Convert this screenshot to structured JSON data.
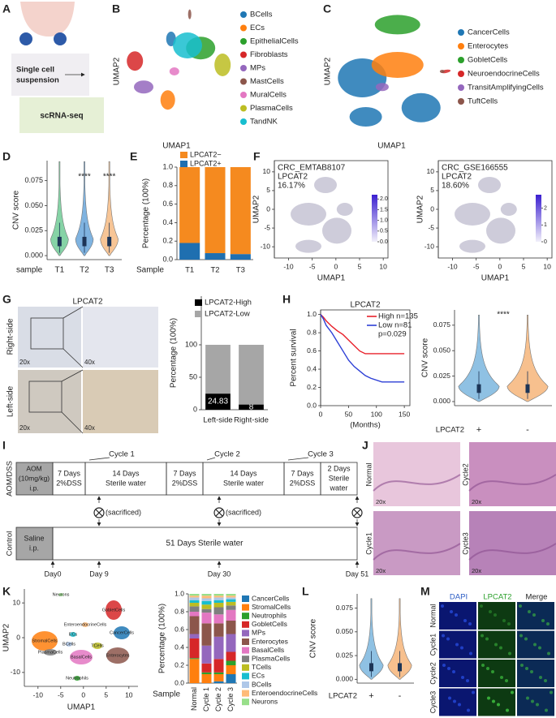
{
  "panels": {
    "A": {
      "label": "A",
      "suspension": [
        "Single cell",
        "suspension"
      ],
      "method": "scRNA-seq"
    },
    "B": {
      "label": "B",
      "xlabel": "UMAP1",
      "ylabel": "UMAP2",
      "legend": [
        {
          "name": "BCells",
          "color": "#1f77b4"
        },
        {
          "name": "ECs",
          "color": "#ff7f0e"
        },
        {
          "name": "EpithelialCells",
          "color": "#2ca02c"
        },
        {
          "name": "Fibroblasts",
          "color": "#d62728"
        },
        {
          "name": "MPs",
          "color": "#9467bd"
        },
        {
          "name": "MastCells",
          "color": "#8c564b"
        },
        {
          "name": "MuralCells",
          "color": "#e377c2"
        },
        {
          "name": "PlasmaCells",
          "color": "#bcbd22"
        },
        {
          "name": "TandNK",
          "color": "#17becf"
        }
      ]
    },
    "C": {
      "label": "C",
      "xlabel": "UMAP1",
      "ylabel": "UMAP2",
      "legend": [
        {
          "name": "CancerCells",
          "color": "#1f77b4"
        },
        {
          "name": "Enterocytes",
          "color": "#ff7f0e"
        },
        {
          "name": "GobletCells",
          "color": "#2ca02c"
        },
        {
          "name": "NeuroendocrineCells",
          "color": "#d62728"
        },
        {
          "name": "TransitAmplifyingCells",
          "color": "#9467bd"
        },
        {
          "name": "TuftCells",
          "color": "#8c564b"
        }
      ]
    },
    "D": {
      "label": "D",
      "ylabel": "CNV score",
      "xlabel": "sample",
      "categories": [
        "T1",
        "T2",
        "T3"
      ],
      "colors": [
        "#86d3a6",
        "#7fb3e0",
        "#f7c596"
      ],
      "significance": [
        "****",
        "****"
      ],
      "ylim": [
        -0.004,
        0.095
      ],
      "yticks": [
        {
          "value": 0,
          "label": "0.000"
        },
        0.025,
        {
          "value": 0.05,
          "label": "0.050"
        },
        0.075
      ]
    },
    "F": {
      "label": "F",
      "xlabel": "UMAP1",
      "ylabel": "UMAP2",
      "xlim": [
        -13,
        11
      ],
      "ylim": [
        -13,
        13
      ],
      "xticks": [
        -10,
        -5,
        0,
        5,
        10
      ],
      "yticks": [
        10,
        5,
        0,
        -5,
        -10
      ],
      "plots": [
        {
          "dataset": "CRC_EMTAB8107",
          "gene": "LPCAT2",
          "percent": "16.17%",
          "colorbar_lim": [
            0,
            2.2
          ],
          "colorbar_ticks": [
            {
              "value": 0,
              "label": "0.0"
            },
            0.5,
            {
              "value": 1,
              "label": "1.0"
            },
            1.5,
            {
              "value": 2,
              "label": "2.0"
            }
          ]
        },
        {
          "dataset": "CRC_GSE166555",
          "gene": "LPCAT2",
          "percent": "18.60%",
          "colorbar_lim": [
            0,
            2.8
          ],
          "colorbar_ticks": [
            0,
            1,
            2
          ]
        }
      ]
    },
    "G": {
      "label": "G",
      "stain": "LPCAT2",
      "rows": [
        "Right-side",
        "Left-side"
      ],
      "low_mag": "20x",
      "high_mag": "40x"
    },
    "H": {
      "label": "H",
      "significance": "****",
      "ylabel": "CNV score",
      "group_label": "LPCAT2",
      "groups": [
        "+",
        "-"
      ],
      "colors": [
        "#8fc1e3",
        "#f7c08e"
      ],
      "ylim": [
        -0.004,
        0.09
      ],
      "yticks": [
        {
          "value": 0,
          "label": "0.000"
        },
        0.025,
        {
          "value": 0.05,
          "label": "0.050"
        },
        0.075
      ]
    },
    "I": {
      "label": "I",
      "treated": "AOM/DSS",
      "control": "Control",
      "aom": [
        "AOM",
        "(10mg/kg)",
        "i.p."
      ],
      "saline": [
        "Saline",
        "i.p."
      ],
      "cycles": [
        "Cycle 1",
        "Cycle 2",
        "Cycle 3"
      ],
      "phases": [
        [
          "7 Days",
          "2%DSS"
        ],
        [
          "14 Days",
          "Sterile water"
        ],
        [
          "7 Days",
          "2%DSS"
        ],
        [
          "14 Days",
          "Sterile water"
        ],
        [
          "7 Days",
          "2%DSS"
        ],
        [
          "2 Days",
          "Sterile",
          "water"
        ]
      ],
      "sacrificed": "(sacrificed)",
      "control_phase": "51 Days Sterile water",
      "days": [
        "Day0",
        "Day 9",
        "Day 30",
        "Day 51"
      ]
    },
    "J": {
      "label": "J",
      "samples": [
        "Normal",
        "Cycle2",
        "Cycle1",
        "Cycle3"
      ],
      "mag": "20x"
    },
    "K": {
      "label": "K",
      "xlabel": "UMAP1",
      "ylabel": "UMAP2",
      "xlim": [
        -13,
        12
      ],
      "ylim": [
        -14,
        14
      ],
      "xticks": [
        -10,
        -5,
        0,
        5,
        10
      ],
      "yticks": [
        10,
        0,
        -10
      ],
      "clusters": [
        "Neurons",
        "GobletCells",
        "EnteroendocrineCells",
        "StromalCells",
        "ECs",
        "BCells",
        "CancerCells",
        "PlasmaCells",
        "TCells",
        "BasalCells",
        "Enterocytes",
        "Neutrophils"
      ]
    },
    "L": {
      "label": "L",
      "ylabel": "CNV score",
      "group_label": "LPCAT2",
      "groups": [
        "+",
        "-"
      ],
      "colors": [
        "#8fc1e3",
        "#f7c08e"
      ],
      "ylim": [
        -0.004,
        0.09
      ],
      "yticks": [
        {
          "value": 0,
          "label": "0.000"
        },
        0.025,
        {
          "value": 0.05,
          "label": "0.050"
        },
        0.075
      ]
    },
    "M": {
      "label": "M",
      "channels": [
        "DAPI",
        "LPCAT2",
        "Merge"
      ],
      "samples": [
        "Normal",
        "Cycle1",
        "Cycle2",
        "Cycle3"
      ]
    }
  },
  "chart_data": [
    {
      "panel": "E",
      "type": "bar",
      "stacked": true,
      "legend_reversed": true,
      "xlabel": "Sample",
      "ylabel": "Percentage (100%)",
      "categories": [
        "T1",
        "T2",
        "T3"
      ],
      "series": [
        {
          "name": "LPCAT2+",
          "color": "#1f6fb0",
          "values": [
            0.18,
            0.07,
            0.06
          ]
        },
        {
          "name": "LPCAT2−",
          "color": "#f58a1f",
          "values": [
            0.82,
            0.93,
            0.94
          ]
        }
      ],
      "ylim": [
        0,
        1
      ],
      "yticks": [
        {
          "value": 0,
          "label": "0.0"
        },
        0.2,
        0.4,
        0.6,
        0.8,
        {
          "value": 1,
          "label": "1.0"
        }
      ]
    },
    {
      "type": "bar",
      "stacked": true,
      "ylabel": "Percentage (100%)",
      "categories": [
        "Left-side",
        "Right-side"
      ],
      "series": [
        {
          "name": "LPCAT2-High",
          "color": "#000000",
          "values": [
            24.83,
            8
          ],
          "value_labels": [
            "24.83",
            "8"
          ]
        },
        {
          "name": "LPCAT2-Low",
          "color": "#a6a6a6",
          "values": [
            75.17,
            92
          ]
        }
      ],
      "ylim": [
        0,
        175
      ],
      "yticks": [
        0,
        50,
        100
      ]
    },
    {
      "type": "line",
      "title": "LPCAT2",
      "xlabel": "(Months)",
      "ylabel": "Percent survival",
      "annotation": "p=0.029",
      "xlim": [
        0,
        160
      ],
      "ylim": [
        0,
        1.05
      ],
      "xticks": [
        0,
        50,
        100,
        150
      ],
      "yticks": [
        {
          "value": 0,
          "label": "0.0"
        },
        0.2,
        0.4,
        0.6,
        0.8,
        {
          "value": 1,
          "label": "1.0"
        }
      ],
      "series": [
        {
          "name": "High n=135",
          "color": "#e8202a",
          "x": [
            0,
            5,
            10,
            20,
            30,
            40,
            50,
            60,
            70,
            80,
            90,
            150
          ],
          "values": [
            1,
            0.97,
            0.93,
            0.87,
            0.82,
            0.78,
            0.72,
            0.66,
            0.6,
            0.57,
            0.57,
            0.57
          ]
        },
        {
          "name": "Low n=81",
          "color": "#2d3fd6",
          "x": [
            0,
            5,
            10,
            20,
            30,
            40,
            50,
            60,
            70,
            80,
            90,
            110,
            150
          ],
          "values": [
            1,
            0.95,
            0.88,
            0.8,
            0.7,
            0.6,
            0.5,
            0.43,
            0.38,
            0.33,
            0.3,
            0.26,
            0.26
          ]
        }
      ]
    },
    {
      "type": "bar",
      "stacked": true,
      "xlabel": "Sample",
      "ylabel": "Percentage (100%)",
      "categories": [
        "Normal",
        "Cycle 1",
        "Cycle 2",
        "Cycle 3"
      ],
      "series": [
        {
          "name": "CancerCells",
          "color": "#1f77b4",
          "values": [
            0,
            0,
            0.02,
            0.1
          ]
        },
        {
          "name": "StromalCells",
          "color": "#ff7f0e",
          "values": [
            0.27,
            0.1,
            0.08,
            0.1
          ]
        },
        {
          "name": "Neutrophils",
          "color": "#2ca02c",
          "values": [
            0.01,
            0.02,
            0.02,
            0.05
          ]
        },
        {
          "name": "GobletCells",
          "color": "#d62728",
          "values": [
            0.22,
            0.1,
            0.15,
            0.1
          ]
        },
        {
          "name": "MPs",
          "color": "#9467bd",
          "values": [
            0.05,
            0.2,
            0.25,
            0.2
          ]
        },
        {
          "name": "Enterocytes",
          "color": "#8c564b",
          "values": [
            0.2,
            0.25,
            0.15,
            0.15
          ]
        },
        {
          "name": "BasalCells",
          "color": "#e377c2",
          "values": [
            0.05,
            0.12,
            0.1,
            0.12
          ]
        },
        {
          "name": "PlasmaCells",
          "color": "#7f7f7f",
          "values": [
            0.06,
            0.04,
            0.08,
            0.05
          ]
        },
        {
          "name": "TCells",
          "color": "#bcbd22",
          "values": [
            0.04,
            0.05,
            0.05,
            0.04
          ]
        },
        {
          "name": "ECs",
          "color": "#17becf",
          "values": [
            0.03,
            0.04,
            0.03,
            0.03
          ]
        },
        {
          "name": "BCells",
          "color": "#aec7e8",
          "values": [
            0.03,
            0.03,
            0.03,
            0.02
          ]
        },
        {
          "name": "EnteroendocrineCells",
          "color": "#ffbb78",
          "values": [
            0.02,
            0.03,
            0.02,
            0.02
          ]
        },
        {
          "name": "Neurons",
          "color": "#98df8a",
          "values": [
            0.02,
            0.02,
            0.02,
            0.02
          ]
        }
      ],
      "ylim": [
        0,
        1
      ],
      "yticks": [
        {
          "value": 0,
          "label": "0.0"
        },
        0.2,
        0.4,
        0.6,
        0.8,
        {
          "value": 1,
          "label": "1.0"
        }
      ]
    }
  ]
}
